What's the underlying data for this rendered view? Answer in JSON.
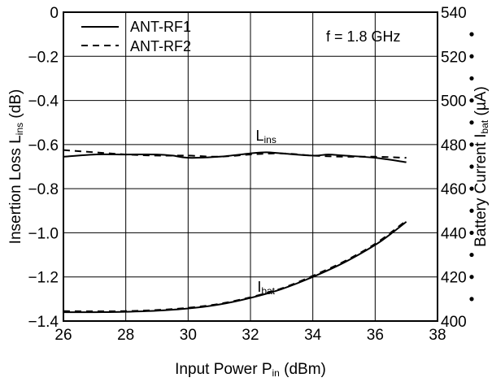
{
  "chart_data": {
    "type": "line",
    "xlabel": {
      "main": "Input Power  P",
      "sub": "in",
      "unit": " (dBm)"
    },
    "ylabel_left": {
      "main": "Insertion Loss  L",
      "sub": "ins",
      "unit": " (dB)"
    },
    "ylabel_right": {
      "main": "Battery Current  I",
      "sub": "bat",
      "unit": " (µA)"
    },
    "xlim": [
      26,
      38
    ],
    "ylim_left": [
      -1.4,
      0
    ],
    "ylim_right": [
      400,
      540
    ],
    "x_ticks": [
      "26",
      "28",
      "30",
      "32",
      "34",
      "36",
      "38"
    ],
    "y_left_ticks": [
      "0",
      "−0.2",
      "−0.4",
      "−0.6",
      "−0.8",
      "−1.0",
      "−1.2",
      "−1.4"
    ],
    "y_right_ticks": [
      "540",
      "520",
      "500",
      "480",
      "460",
      "440",
      "420",
      "400"
    ],
    "grid": true,
    "annotation": "f = 1.8 GHz",
    "curve_labels": [
      {
        "main": "L",
        "sub": "ins",
        "x": 32.5,
        "y_left": -0.56
      },
      {
        "main": "I",
        "sub": "bat",
        "x": 32.5,
        "y_left": -1.245
      }
    ],
    "legend": {
      "position": "top-left",
      "entries": [
        "ANT-RF1",
        "ANT-RF2"
      ]
    },
    "series": [
      {
        "name": "ANT-RF1",
        "quantity": "Insertion Loss",
        "axis": "left",
        "style": "solid",
        "x": [
          26,
          27,
          28,
          29,
          29.5,
          30,
          31,
          32,
          32.5,
          33,
          34,
          34.5,
          35,
          36,
          37
        ],
        "y": [
          -0.655,
          -0.645,
          -0.645,
          -0.645,
          -0.65,
          -0.66,
          -0.655,
          -0.64,
          -0.635,
          -0.64,
          -0.65,
          -0.645,
          -0.65,
          -0.66,
          -0.68
        ]
      },
      {
        "name": "ANT-RF2",
        "quantity": "Insertion Loss",
        "axis": "left",
        "style": "dashed",
        "x": [
          26,
          27,
          28,
          29,
          30,
          31,
          32,
          33,
          34,
          35,
          36,
          37
        ],
        "y": [
          -0.625,
          -0.635,
          -0.645,
          -0.65,
          -0.65,
          -0.655,
          -0.645,
          -0.64,
          -0.65,
          -0.655,
          -0.655,
          -0.66
        ]
      },
      {
        "name": "ANT-RF1",
        "quantity": "Battery Current",
        "axis": "right",
        "style": "solid",
        "x": [
          26,
          27,
          28,
          29,
          30,
          31,
          32,
          33,
          34,
          35,
          36,
          36.5,
          37
        ],
        "y": [
          404,
          404,
          404.2,
          404.7,
          405.7,
          407.5,
          410.5,
          414.5,
          420,
          426.5,
          434.5,
          439.5,
          445
        ]
      },
      {
        "name": "ANT-RF2",
        "quantity": "Battery Current",
        "axis": "right",
        "style": "dashed",
        "x": [
          26,
          27,
          28,
          29,
          30,
          31,
          32,
          33,
          34,
          35,
          36,
          37
        ],
        "y": [
          404.5,
          404.4,
          404.5,
          405,
          406,
          407.8,
          410.8,
          414.8,
          420.5,
          427,
          435,
          445.5
        ]
      }
    ]
  }
}
